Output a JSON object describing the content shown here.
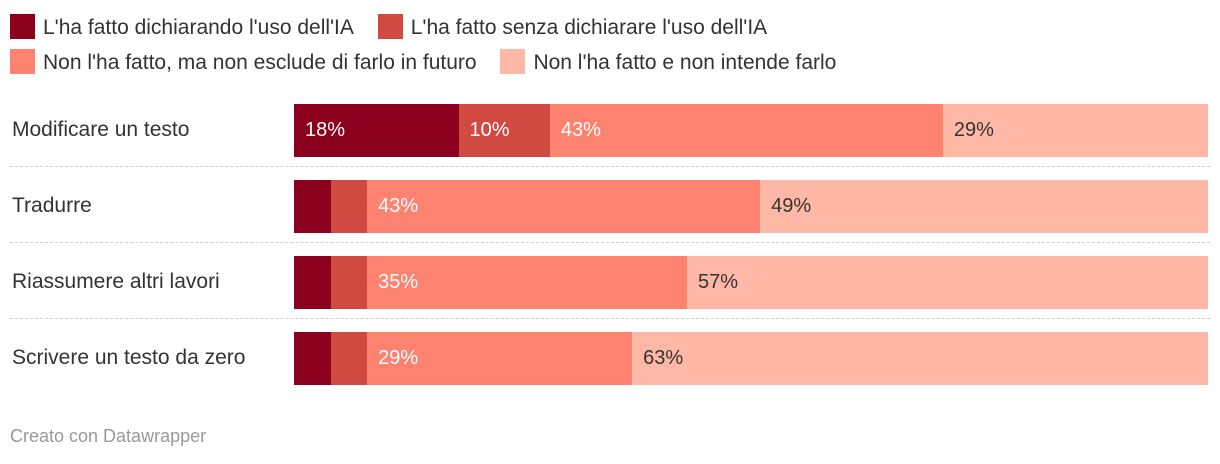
{
  "chart_data": {
    "type": "bar",
    "orientation": "horizontal",
    "stacked": true,
    "title": "",
    "xlabel": "",
    "ylabel": "",
    "xlim": [
      0,
      100
    ],
    "unit": "%",
    "legend_position": "top",
    "categories": [
      "Modificare un testo",
      "Tradurre",
      "Riassumere altri lavori",
      "Scrivere un testo da zero"
    ],
    "series": [
      {
        "name": "L'ha fatto dichiarando l'uso dell'IA",
        "color": "#8b001c",
        "values": [
          18,
          4,
          4,
          4
        ],
        "labels": [
          "18%",
          "",
          "",
          ""
        ],
        "label_color": "#ffffff"
      },
      {
        "name": "L'ha fatto senza dichiarare l'uso dell'IA",
        "color": "#d04a42",
        "values": [
          10,
          4,
          4,
          4
        ],
        "labels": [
          "10%",
          "",
          "",
          ""
        ],
        "label_color": "#ffffff"
      },
      {
        "name": "Non l'ha fatto, ma non esclude di farlo in futuro",
        "color": "#fd8270",
        "values": [
          43,
          43,
          35,
          29
        ],
        "labels": [
          "43%",
          "43%",
          "35%",
          "29%"
        ],
        "label_color": "#ffffff"
      },
      {
        "name": "Non l'ha fatto e non intende farlo",
        "color": "#ffb8a5",
        "values": [
          29,
          49,
          57,
          63
        ],
        "labels": [
          "29%",
          "49%",
          "57%",
          "63%"
        ],
        "label_color": "#333333"
      }
    ]
  },
  "footer": {
    "credit": "Creato con Datawrapper"
  }
}
